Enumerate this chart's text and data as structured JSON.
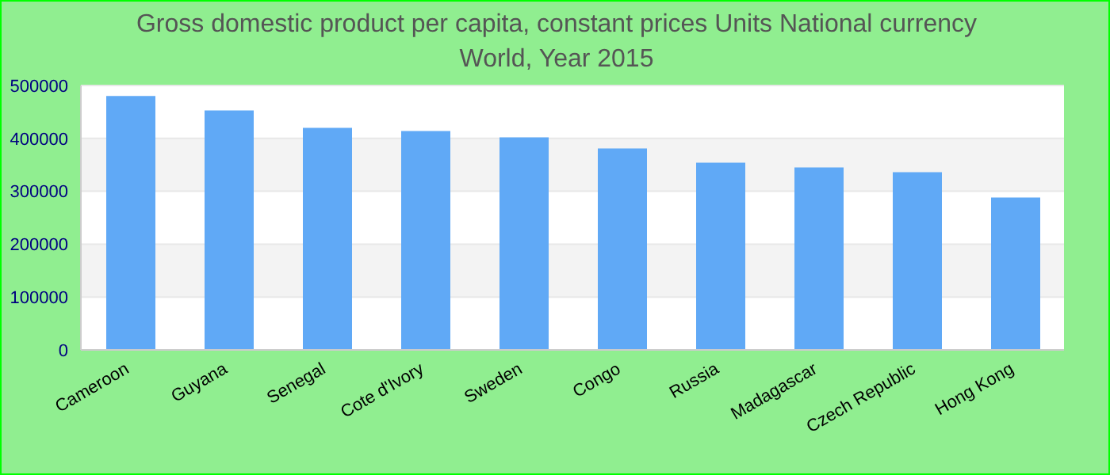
{
  "chart_data": {
    "type": "bar",
    "title": "Gross domestic product per capita, constant prices Units National currency",
    "subtitle": "World, Year 2015",
    "categories": [
      "Cameroon",
      "Guyana",
      "Senegal",
      "Cote d'Ivory",
      "Sweden",
      "Congo",
      "Russia",
      "Madagascar",
      "Czech Republic",
      "Hong Kong"
    ],
    "values": [
      480000,
      453000,
      420000,
      414000,
      402000,
      381000,
      354000,
      345000,
      336000,
      288000
    ],
    "color": "#60a9f6",
    "ylim": [
      0,
      500000
    ],
    "yticks": [
      0,
      100000,
      200000,
      300000,
      400000,
      500000
    ],
    "grid": "y",
    "legend": false
  }
}
